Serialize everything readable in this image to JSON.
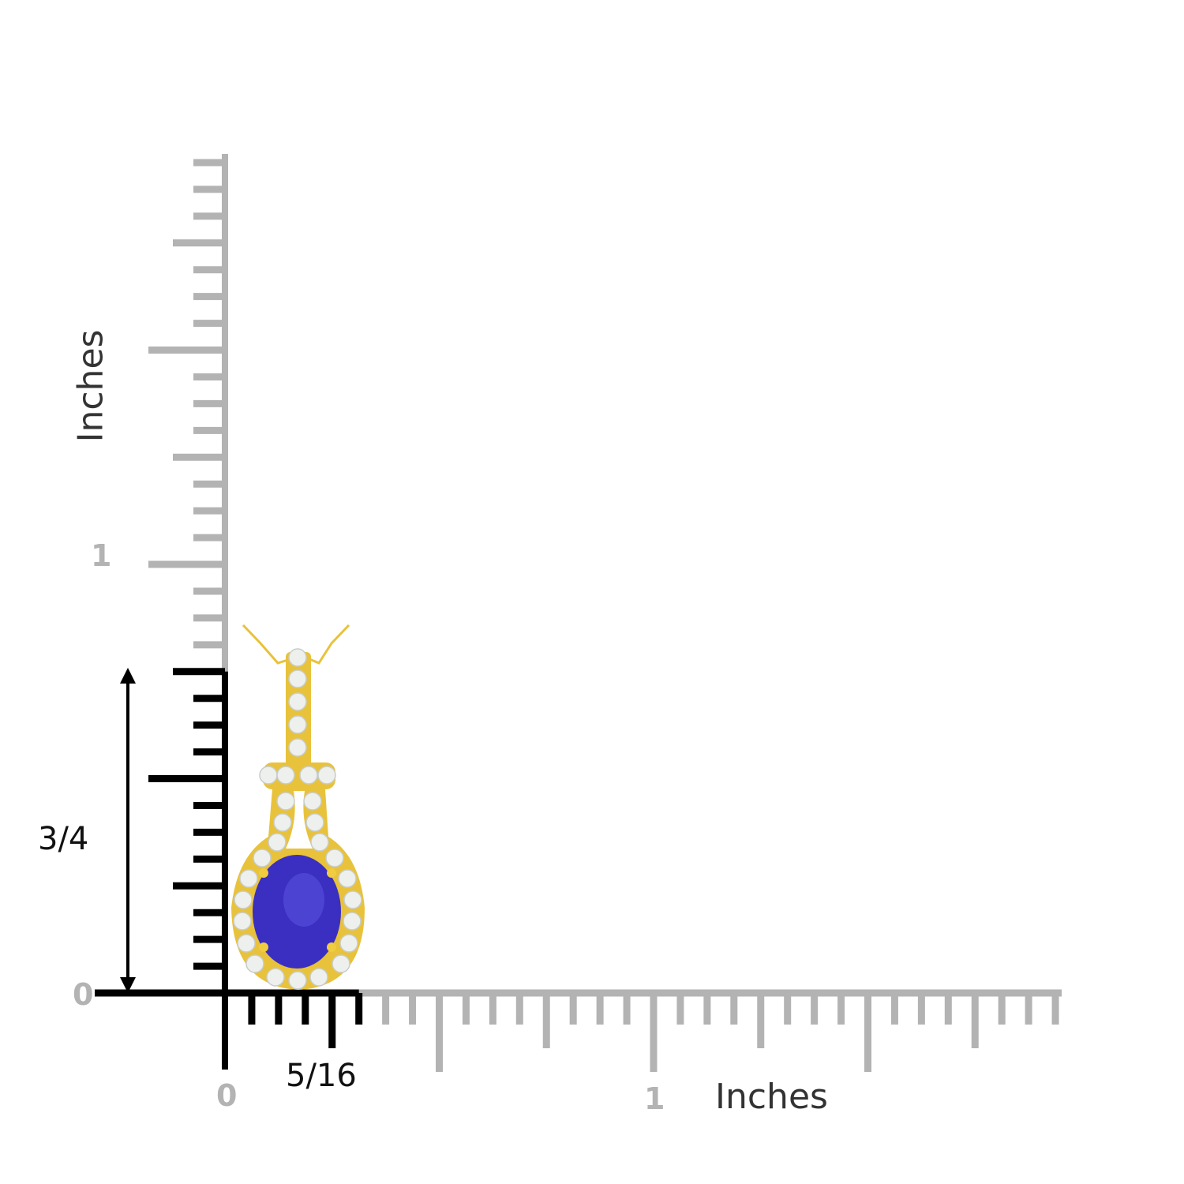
{
  "ruler": {
    "unit_label_vertical": "Inches",
    "unit_label_horizontal": "Inches",
    "vertical_zero": "0",
    "vertical_one": "1",
    "horizontal_zero": "0",
    "horizontal_one": "1",
    "ticks_per_inch": 16,
    "colors": {
      "ruler": "#b3b3b3",
      "highlight": "#000000"
    }
  },
  "dimensions": {
    "height_label": "3/4",
    "height_inches": 0.75,
    "width_label": "5/16",
    "width_inches": 0.3125
  },
  "product": {
    "type": "pendant",
    "metal_color": "#e8c23a",
    "center_stone_color": "#3a2fc0",
    "accent_stone_color": "#eef0ee"
  }
}
